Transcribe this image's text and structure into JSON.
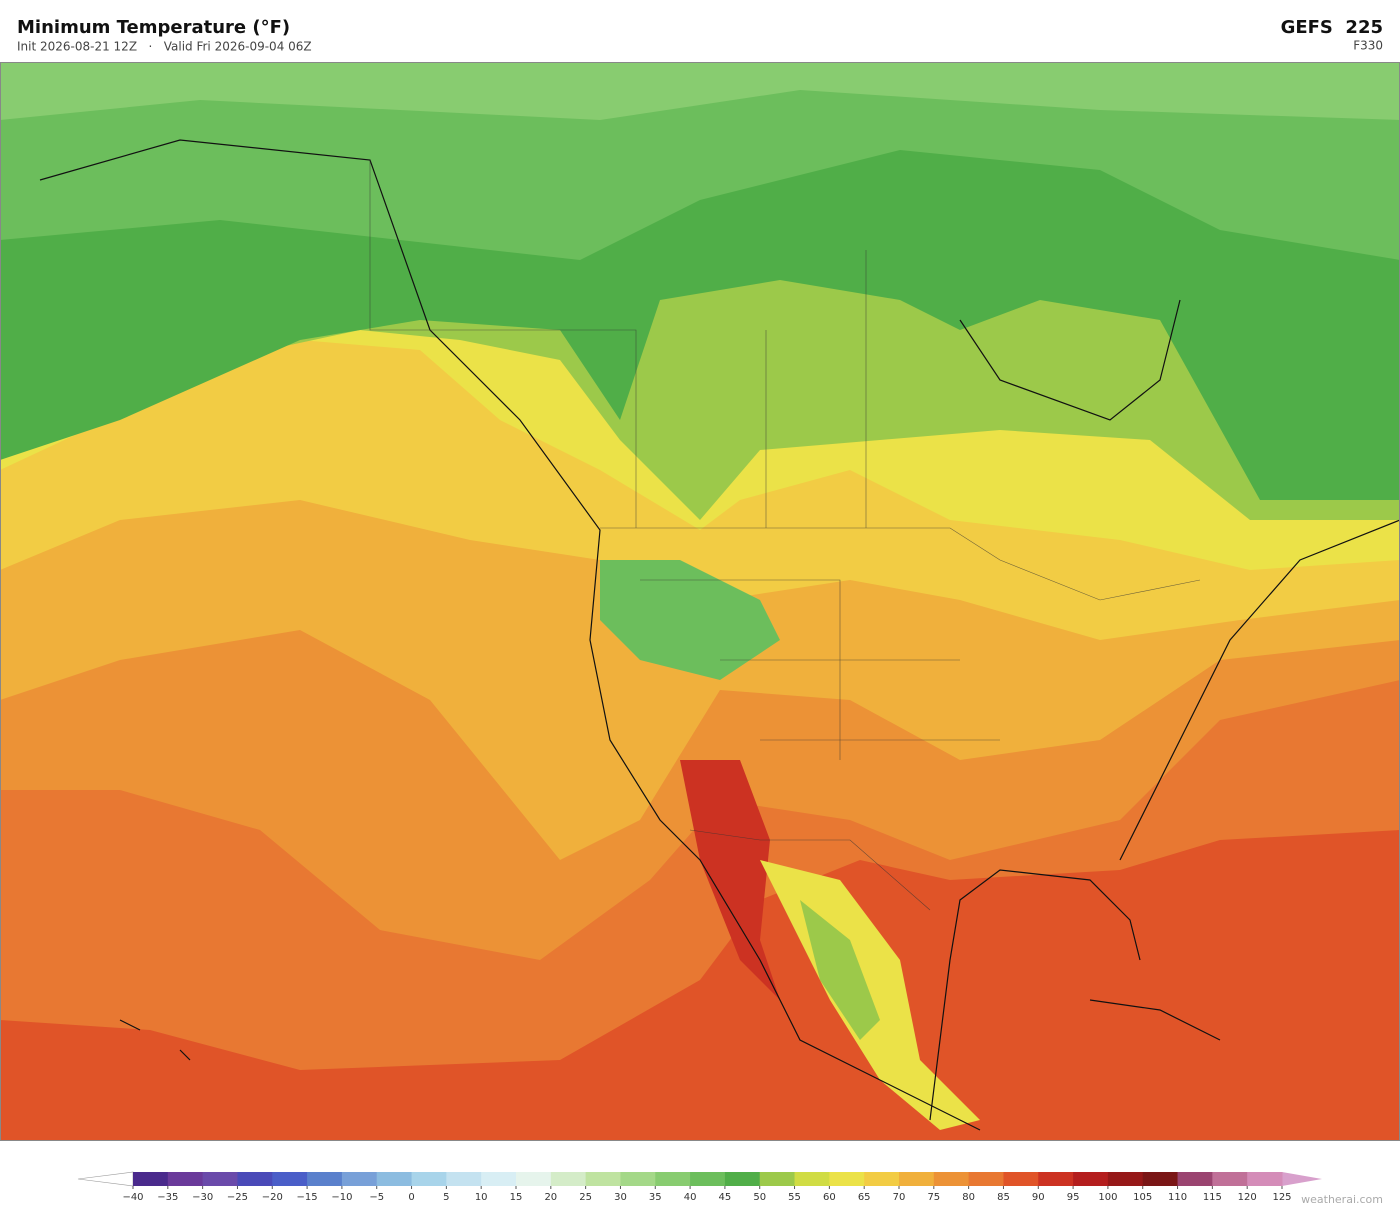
{
  "header": {
    "title": "Minimum Temperature  (°F)",
    "subtitle": "Init 2026-08-21 12Z   ·   Valid Fri 2026-09-04 06Z",
    "model": "GEFS  225",
    "forecast_hour": "F330"
  },
  "colorbar": {
    "ticks": [
      {
        "value": -40,
        "label": "−40"
      },
      {
        "value": -35,
        "label": "−35"
      },
      {
        "value": -30,
        "label": "−30"
      },
      {
        "value": -25,
        "label": "−25"
      },
      {
        "value": -20,
        "label": "−20"
      },
      {
        "value": -15,
        "label": "−15"
      },
      {
        "value": -10,
        "label": "−10"
      },
      {
        "value": -5,
        "label": "−5"
      },
      0,
      5,
      10,
      15,
      20,
      25,
      30,
      35,
      40,
      45,
      50,
      55,
      60,
      65,
      70,
      75,
      80,
      85,
      90,
      95,
      100,
      105,
      110,
      115,
      120,
      125
    ],
    "colors": [
      "#4a2a8c",
      "#6a3a9a",
      "#6a4aaa",
      "#4a4ab8",
      "#4a5ec8",
      "#5a80cc",
      "#78a0d8",
      "#8cbce0",
      "#a8d4ea",
      "#c4e2f0",
      "#d8eef4",
      "#e6f4ec",
      "#d4ecc8",
      "#bfe3a0",
      "#a4d888",
      "#88cc70",
      "#6cbe5c",
      "#50ae48",
      "#9cc94a",
      "#d0dc44",
      "#ebe248",
      "#f2cc44",
      "#f0b03c",
      "#ec9236",
      "#e87832",
      "#e05428",
      "#cc3222",
      "#b41e1e",
      "#961818",
      "#7a1616",
      "#9a4470",
      "#c07098",
      "#d48cb8"
    ],
    "under_color": "#ffffff",
    "over_color": "#d8a0cc"
  },
  "footer": {
    "credit": "weatherai.com"
  }
}
